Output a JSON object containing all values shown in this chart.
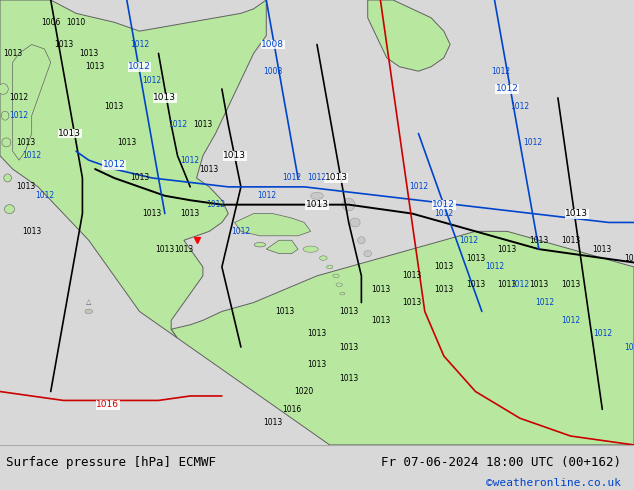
{
  "title_left": "Surface pressure [hPa] ECMWF",
  "title_right": "Fr 07-06-2024 18:00 UTC (00+162)",
  "watermark": "©weatheronline.co.uk",
  "bg_color": "#d8d8d8",
  "land_color": "#b8e8a0",
  "water_color": "#d0d8e8",
  "text_color_black": "#000000",
  "text_color_blue": "#0044cc",
  "text_color_red": "#cc0000",
  "bottom_bar_color": "#f0f0f0",
  "figsize": [
    6.34,
    4.9
  ],
  "dpi": 100,
  "font_size_bottom": 9,
  "font_size_watermark": 8
}
